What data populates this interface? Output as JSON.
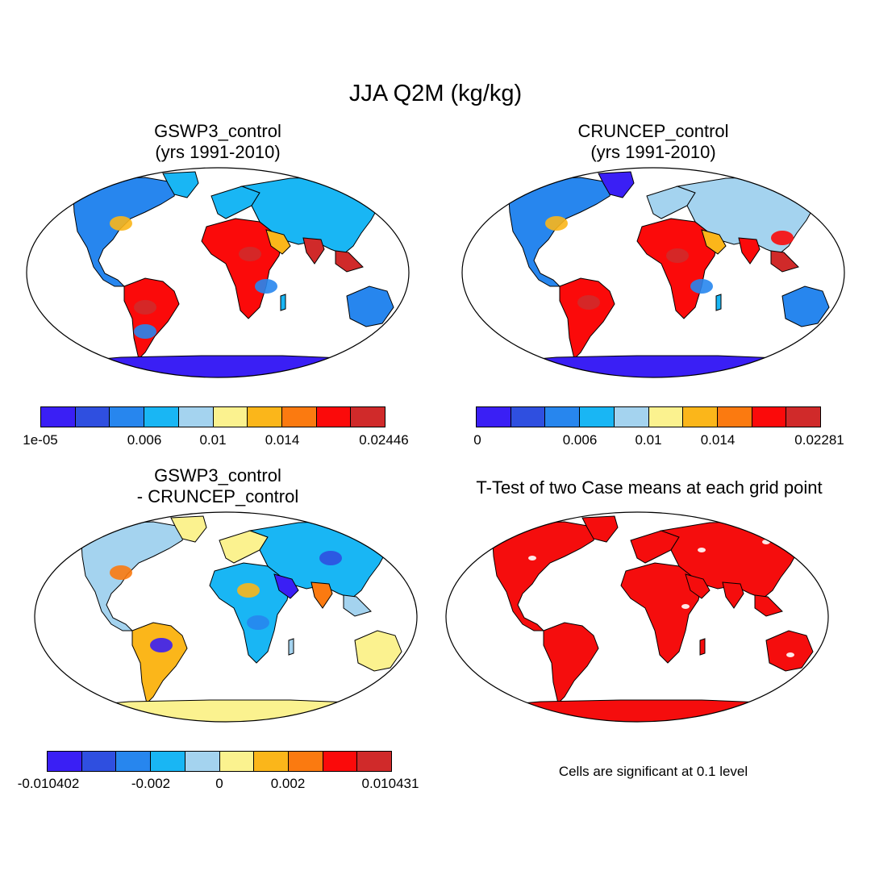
{
  "title": "JJA Q2M (kg/kg)",
  "colors": {
    "scale": [
      "#3a1ff5",
      "#2f4fe0",
      "#2786ee",
      "#19b6f4",
      "#a4d3ef",
      "#fbf28f",
      "#fbb61a",
      "#fb7a10",
      "#fb0a0a",
      "#d02a2a"
    ],
    "ocean": "#ffffff",
    "significant": "#f50d0d",
    "outline": "#000000"
  },
  "panels": [
    {
      "id": "gswp3",
      "title_line1": "GSWP3_control",
      "title_line2": "(yrs 1991-2010)",
      "colorbar_labels": [
        "1e-05",
        "0.006",
        "0.01",
        "0.014",
        "0.02446"
      ]
    },
    {
      "id": "cruncep",
      "title_line1": "CRUNCEP_control",
      "title_line2": "(yrs 1991-2010)",
      "colorbar_labels": [
        "0",
        "0.006",
        "0.01",
        "0.014",
        "0.02281"
      ]
    },
    {
      "id": "difference",
      "title_line1": "GSWP3_control",
      "title_line2": "- CRUNCEP_control",
      "colorbar_labels": [
        "-0.010402",
        "-0.002",
        "0",
        "0.002",
        "0.010431"
      ]
    },
    {
      "id": "ttest",
      "title_line1": "T-Test of two Case means at each grid point",
      "note": "Cells are significant at 0.1 level"
    }
  ]
}
